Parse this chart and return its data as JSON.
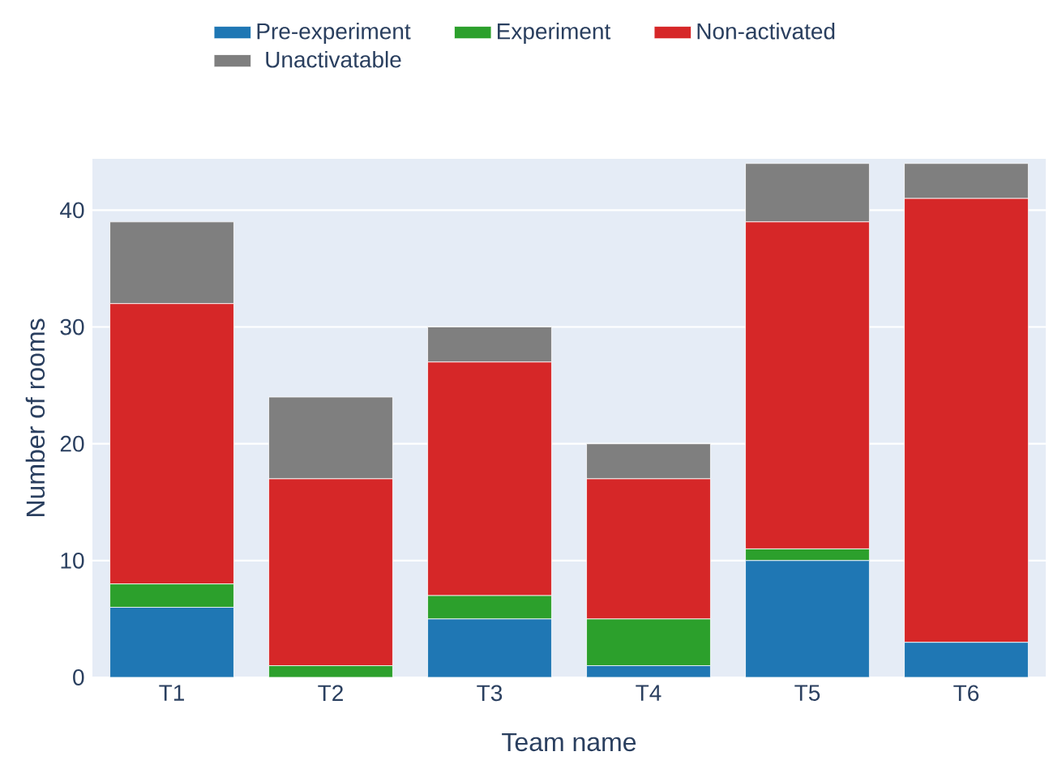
{
  "chart_data": {
    "type": "bar",
    "stacked": true,
    "xlabel": "Team name",
    "ylabel": "Number of rooms",
    "categories": [
      "T1",
      "T2",
      "T3",
      "T4",
      "T5",
      "T6"
    ],
    "series": [
      {
        "name": "Pre-experiment",
        "color": "#1f77b4",
        "values": [
          6,
          0,
          5,
          1,
          10,
          3
        ]
      },
      {
        "name": "Experiment",
        "color": "#2ca02c",
        "values": [
          2,
          1,
          2,
          4,
          1,
          0
        ]
      },
      {
        "name": "Non-activated",
        "color": "#d62728",
        "values": [
          24,
          16,
          20,
          12,
          28,
          38
        ]
      },
      {
        "name": "Unactivatable",
        "color": "#7f7f7f",
        "values": [
          7,
          7,
          3,
          3,
          5,
          3
        ]
      }
    ],
    "ylim": [
      0,
      44.4
    ],
    "yticks": [
      0,
      10,
      20,
      30,
      40
    ],
    "grid": "y",
    "legend": "top"
  }
}
